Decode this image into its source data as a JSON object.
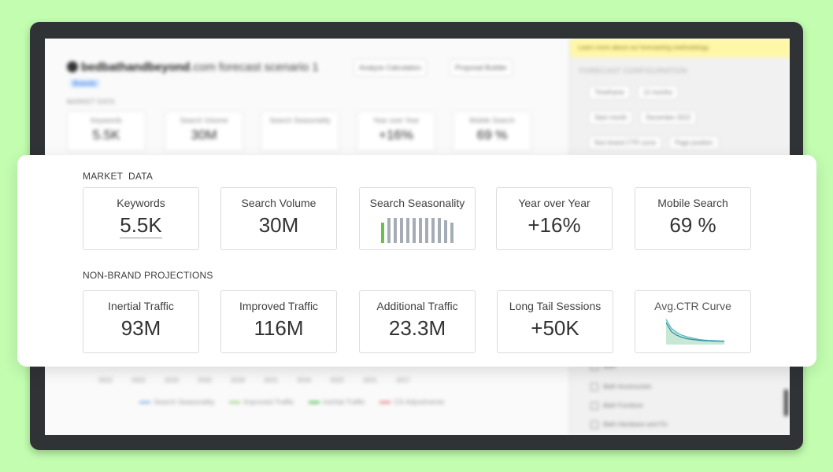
{
  "background_app": {
    "title_domain": "bedbathandbeyond",
    "title_suffix": ".com forecast scenario 1",
    "subtitle_label": "Brands",
    "subtitle_tag": "Brands",
    "analyze_button": "Analyze Calculation",
    "proposal_button": "Proposal Builder",
    "market_data_label": "MARKET DATA",
    "cards": [
      {
        "label": "Keywords",
        "value": "5.5K"
      },
      {
        "label": "Search Volume",
        "value": "30M"
      },
      {
        "label": "Search Seasonality",
        "value": ""
      },
      {
        "label": "Year over Year",
        "value": "+16%"
      },
      {
        "label": "Mobile Search",
        "value": "69 %"
      }
    ],
    "axis_months": "2022 2022 2019 2020 2018 2021 2019 2022 2021 2017",
    "legend": [
      "Search Seasonality",
      "Improved Traffic",
      "Inertial Traffic",
      "CS Adjustments"
    ],
    "notice": "Learn more about our forecasting methodology",
    "config_heading": "FORECAST CONFIGURATION",
    "fields": [
      {
        "label": "Timeframe",
        "value": "12 months"
      },
      {
        "label": "Start month",
        "value": "December 2022"
      },
      {
        "label": "Non-brand CTR curve",
        "value": "Page position"
      }
    ],
    "rows": [
      "Bath",
      "Bath Accessories",
      "Bath Furniture",
      "Bath Hardware and Fix"
    ]
  },
  "panel": {
    "market_data_heading": "MARKET  DATA",
    "projections_heading": "NON-BRAND PROJECTIONS",
    "market_cards": [
      {
        "label": "Keywords",
        "value": "5.5K"
      },
      {
        "label": "Search Volume",
        "value": "30M"
      },
      {
        "label": "Search Seasonality",
        "value": ""
      },
      {
        "label": "Year over Year",
        "value": "+16%"
      },
      {
        "label": "Mobile Search",
        "value": "69 %"
      }
    ],
    "projection_cards": [
      {
        "label": "Inertial Traffic",
        "value": "93M"
      },
      {
        "label": "Improved Traffic",
        "value": "116M"
      },
      {
        "label": "Additional Traffic",
        "value": "23.3M"
      },
      {
        "label": "Long Tail Sessions",
        "value": "+50K"
      },
      {
        "label": "Avg.CTR Curve",
        "value": ""
      }
    ],
    "seasonality_bars": [
      0.8,
      1.0,
      1.0,
      1.0,
      1.0,
      1.0,
      1.0,
      1.0,
      1.0,
      1.0,
      0.9,
      0.82
    ],
    "highlighted_bar_index": 0
  },
  "ctr_curve": {
    "improved": [
      1.0,
      0.62,
      0.45,
      0.33,
      0.26,
      0.21,
      0.16,
      0.13,
      0.11,
      0.1,
      0.09,
      0.08
    ],
    "inertial": [
      0.86,
      0.48,
      0.33,
      0.24,
      0.18,
      0.15,
      0.12,
      0.1,
      0.09,
      0.08,
      0.08,
      0.07
    ]
  },
  "colors": {
    "page_background": "#c2fdb0",
    "frame": "#2f3336",
    "highlight_bar": "#6dbf4b",
    "neutral_bar": "#a6acb6",
    "ctr_fill": "#c6e8d4",
    "ctr_line_dark": "#2c8ca0",
    "ctr_line_light": "#4fb7c7"
  }
}
